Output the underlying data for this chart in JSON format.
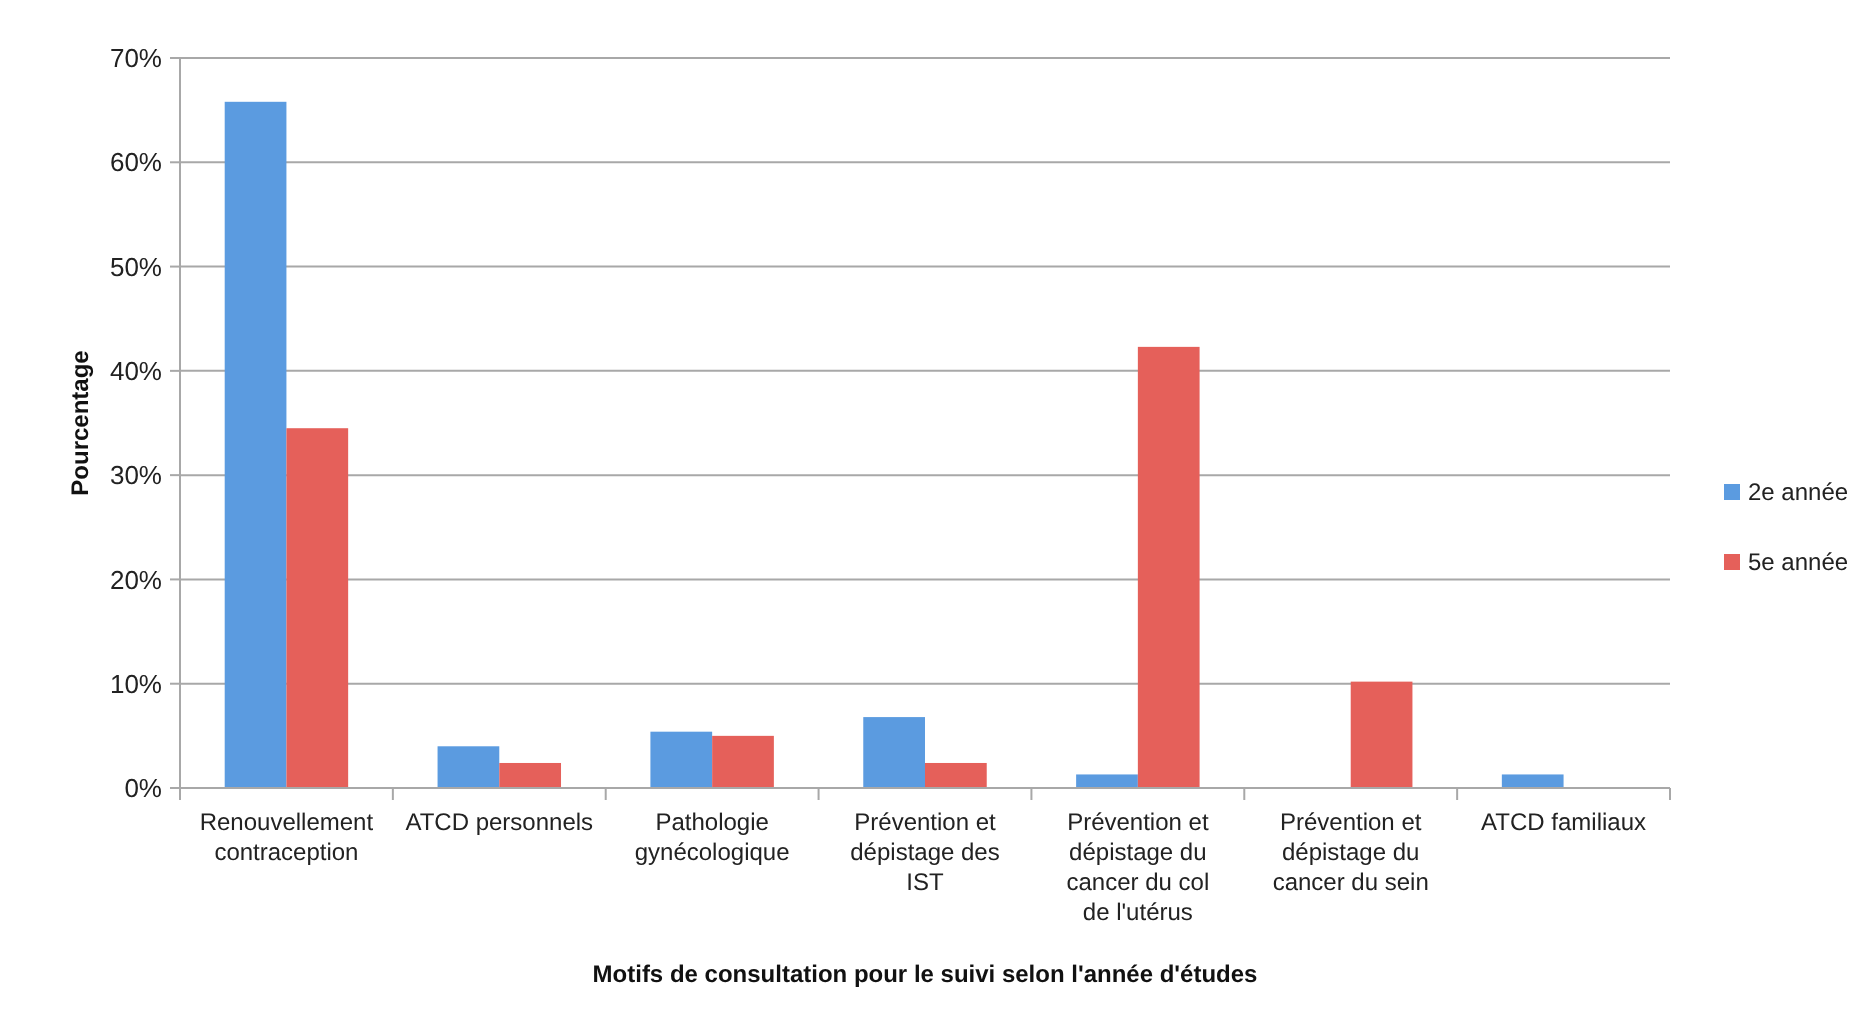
{
  "chart_data": {
    "type": "bar",
    "xlabel": "Motifs de consultation pour le suivi selon l'année d'études",
    "ylabel": "Pourcentage",
    "categories": [
      "Renouvellement contraception",
      "ATCD personnels",
      "Pathologie gynécologique",
      "Prévention et dépistage des IST",
      "Prévention et dépistage du cancer du col de l'utérus",
      "Prévention et dépistage du cancer du sein",
      "ATCD familiaux"
    ],
    "series": [
      {
        "name": "2e année",
        "color": "#5b9be0",
        "values": [
          65.8,
          4.0,
          5.4,
          6.8,
          1.3,
          0,
          1.3
        ]
      },
      {
        "name": "5e année",
        "color": "#e5605a",
        "values": [
          34.5,
          2.4,
          5.0,
          2.4,
          42.3,
          10.2,
          0
        ]
      }
    ],
    "ylim": [
      0,
      70
    ],
    "yticks": [
      {
        "value": 0,
        "label": "0%"
      },
      {
        "value": 10,
        "label": "10%"
      },
      {
        "value": 20,
        "label": "20%"
      },
      {
        "value": 30,
        "label": "30%"
      },
      {
        "value": 40,
        "label": "40%"
      },
      {
        "value": 50,
        "label": "50%"
      },
      {
        "value": 60,
        "label": "60%"
      },
      {
        "value": 70,
        "label": "70%"
      }
    ],
    "grid": "y",
    "legend": "right"
  }
}
